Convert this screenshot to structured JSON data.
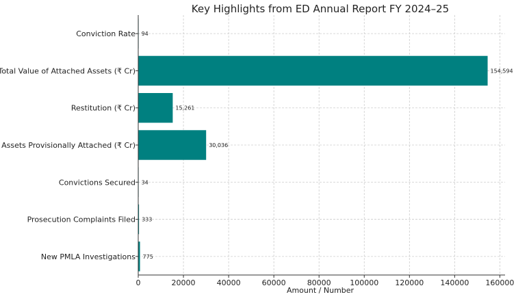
{
  "chart_data": {
    "type": "bar",
    "orientation": "horizontal",
    "title": "Key Highlights from ED Annual Report FY 2024–25",
    "xlabel": "Amount / Number",
    "ylabel": "",
    "categories": [
      "New PMLA Investigations",
      "Prosecution Complaints Filed",
      "Convictions Secured",
      "Assets Provisionally Attached (₹ Cr)",
      "Restitution (₹ Cr)",
      "Total Value of Attached Assets (₹ Cr)",
      "Conviction Rate"
    ],
    "values": [
      775,
      333,
      34,
      30036,
      15261,
      154594,
      94
    ],
    "data_labels": [
      "775",
      "333",
      "34",
      "30,036",
      "15,261",
      "154,594",
      "94"
    ],
    "xlim": [
      0,
      162300
    ],
    "xticks": [
      0,
      20000,
      40000,
      60000,
      80000,
      100000,
      120000,
      140000,
      160000
    ],
    "xtick_labels": [
      "0",
      "20000",
      "40000",
      "60000",
      "80000",
      "100000",
      "120000",
      "140000",
      "160000"
    ],
    "grid": true,
    "bar_color": "#008080"
  }
}
